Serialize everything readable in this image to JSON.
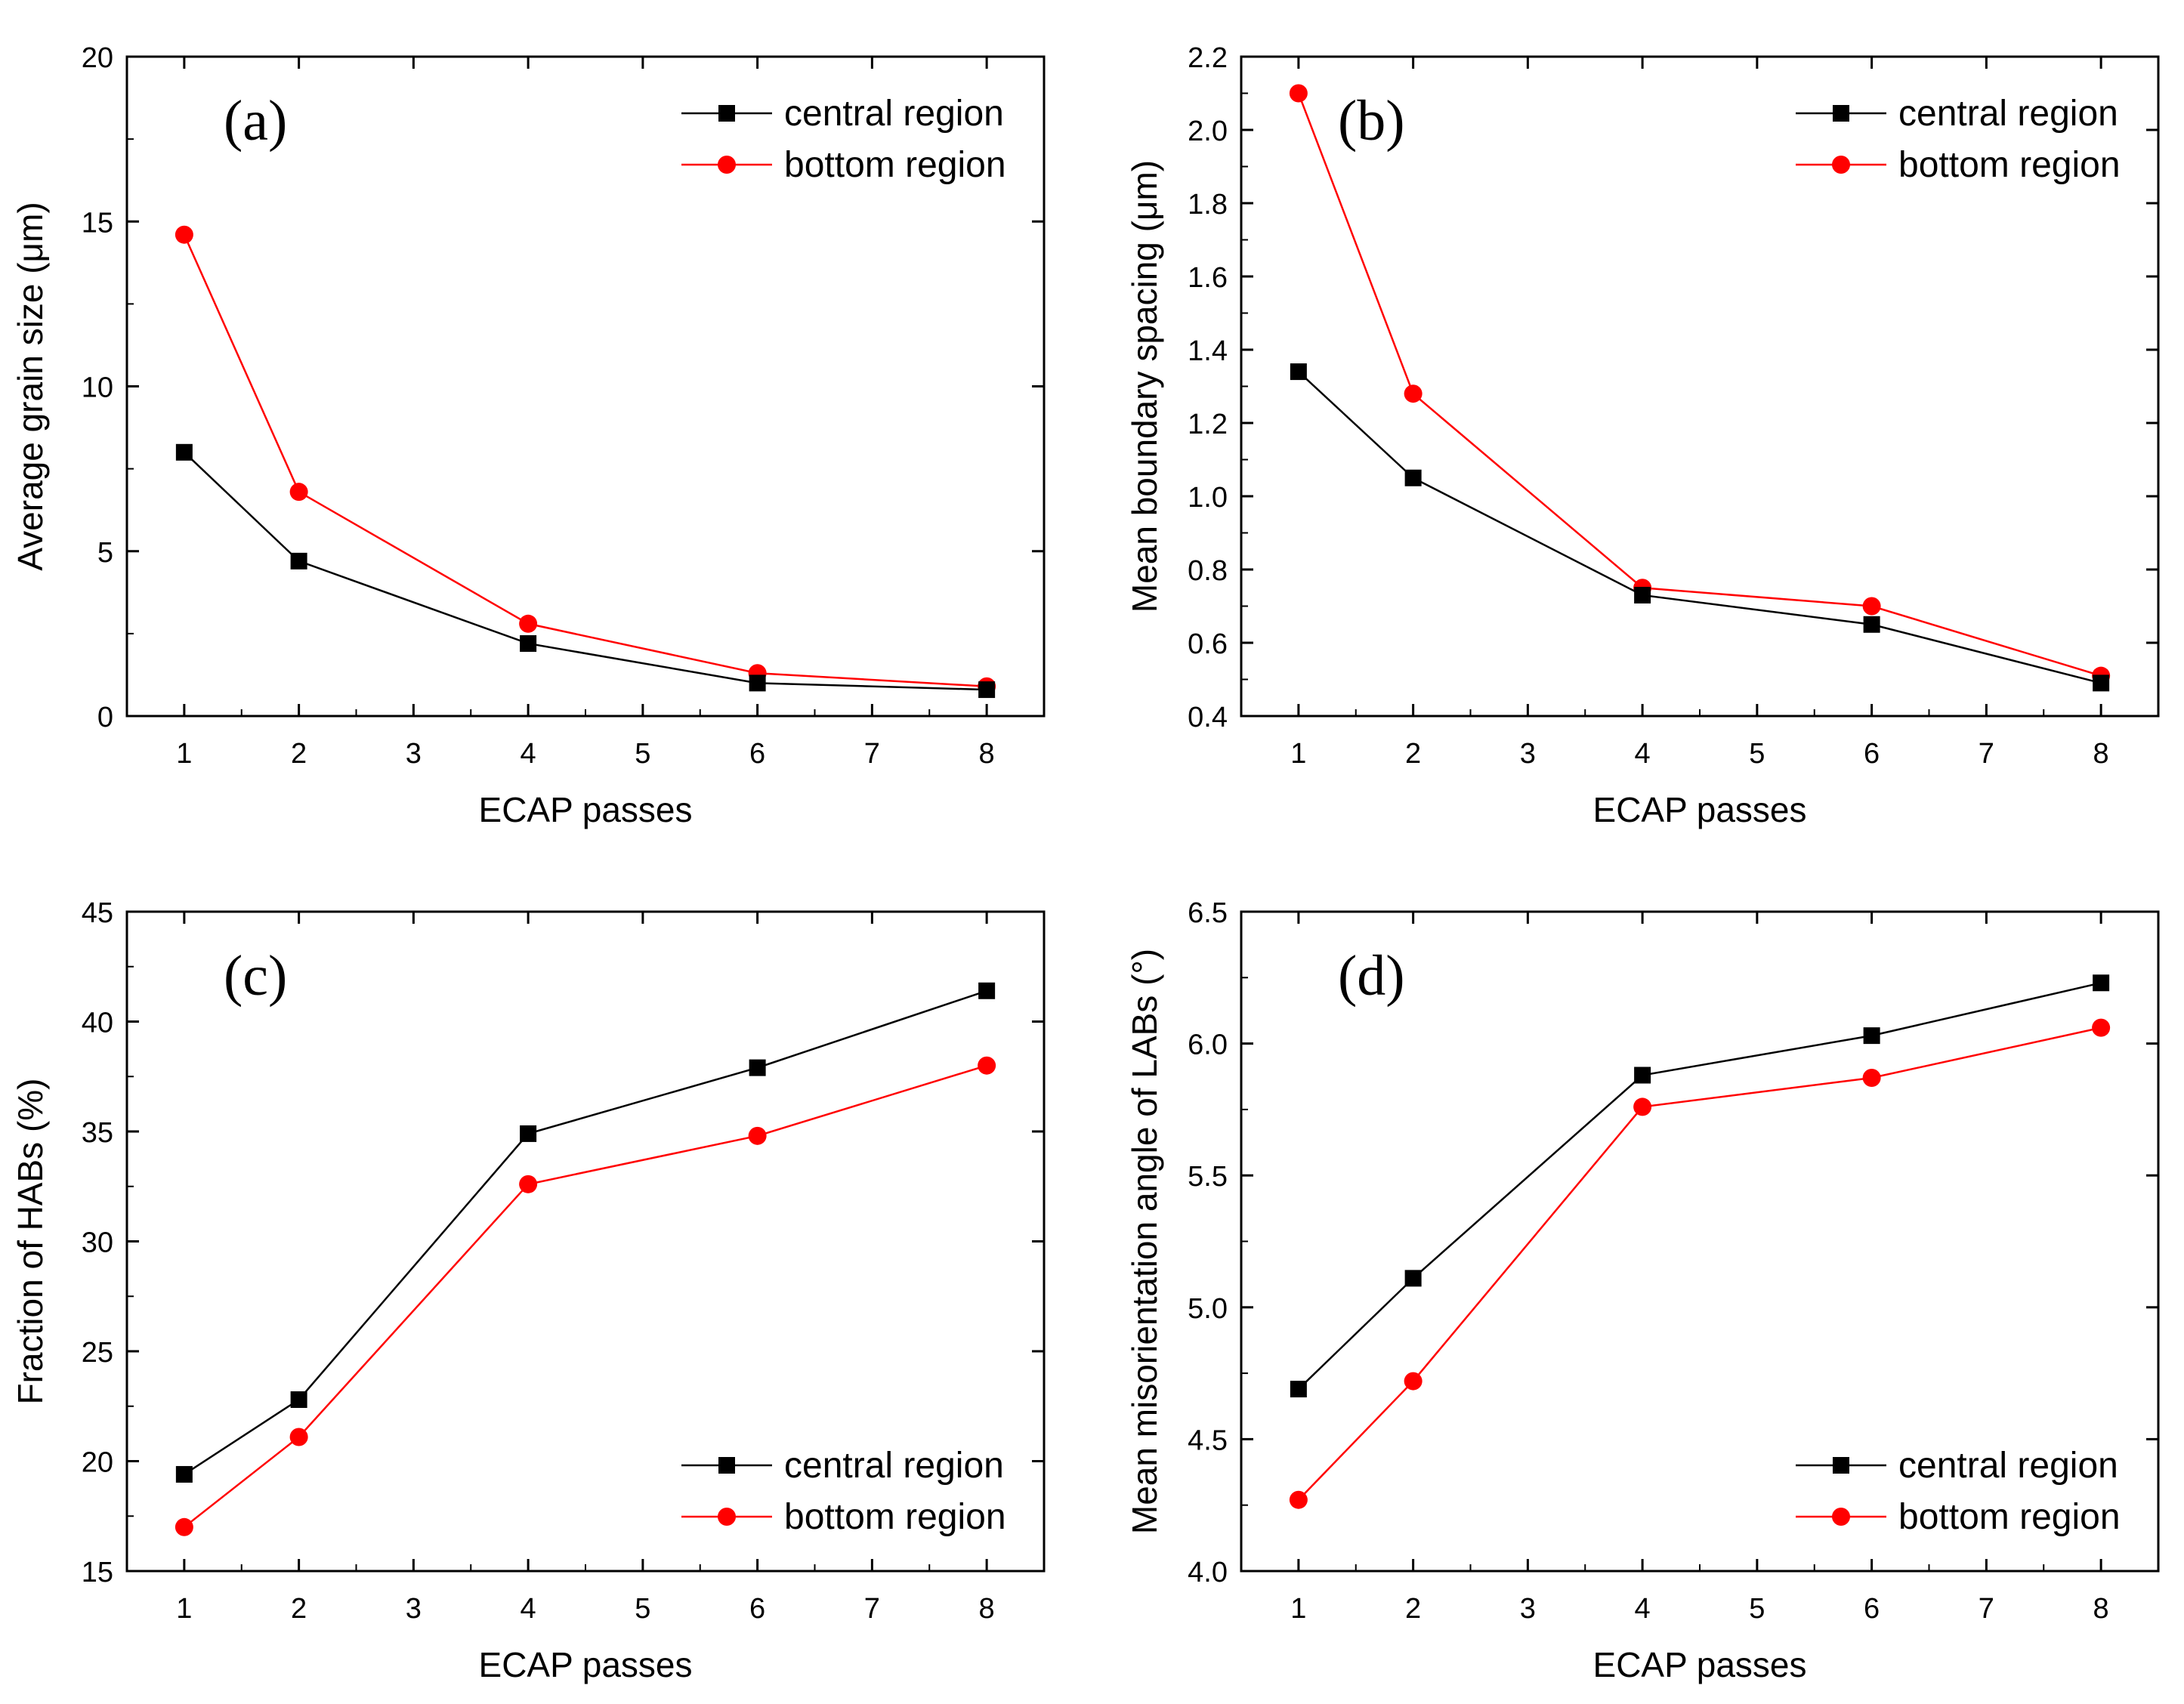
{
  "colors": {
    "central": "#000000",
    "bottom": "#ff0000",
    "axis": "#000000",
    "background": "#ffffff"
  },
  "chart_data": [
    {
      "type": "line",
      "panel": "(a)",
      "xlabel": "ECAP passes",
      "ylabel": "Average grain size (μm)",
      "xlim": [
        0.5,
        8.5
      ],
      "ylim": [
        0,
        20
      ],
      "xticks": [
        1,
        2,
        3,
        4,
        5,
        6,
        7,
        8
      ],
      "yticks": [
        0,
        5,
        10,
        15,
        20
      ],
      "legend_position": "top-right",
      "series": [
        {
          "name": "central region",
          "marker": "square",
          "color": "#000000",
          "x": [
            1,
            2,
            4,
            6,
            8
          ],
          "values": [
            8.0,
            4.7,
            2.2,
            1.0,
            0.8
          ]
        },
        {
          "name": "bottom region",
          "marker": "circle",
          "color": "#ff0000",
          "x": [
            1,
            2,
            4,
            6,
            8
          ],
          "values": [
            14.6,
            6.8,
            2.8,
            1.3,
            0.9
          ]
        }
      ]
    },
    {
      "type": "line",
      "panel": "(b)",
      "xlabel": "ECAP passes",
      "ylabel": "Mean boundary spacing (μm)",
      "xlim": [
        0.5,
        8.5
      ],
      "ylim": [
        0.4,
        2.2
      ],
      "xticks": [
        1,
        2,
        3,
        4,
        5,
        6,
        7,
        8
      ],
      "yticks": [
        0.4,
        0.6,
        0.8,
        1.0,
        1.2,
        1.4,
        1.6,
        1.8,
        2.0,
        2.2
      ],
      "yfixed": 1,
      "legend_position": "top-right",
      "series": [
        {
          "name": "central region",
          "marker": "square",
          "color": "#000000",
          "x": [
            1,
            2,
            4,
            6,
            8
          ],
          "values": [
            1.34,
            1.05,
            0.73,
            0.65,
            0.49
          ]
        },
        {
          "name": "bottom region",
          "marker": "circle",
          "color": "#ff0000",
          "x": [
            1,
            2,
            4,
            6,
            8
          ],
          "values": [
            2.1,
            1.28,
            0.75,
            0.7,
            0.51
          ]
        }
      ]
    },
    {
      "type": "line",
      "panel": "(c)",
      "xlabel": "ECAP passes",
      "ylabel": "Fraction of HABs (%)",
      "xlim": [
        0.5,
        8.5
      ],
      "ylim": [
        15,
        45
      ],
      "xticks": [
        1,
        2,
        3,
        4,
        5,
        6,
        7,
        8
      ],
      "yticks": [
        15,
        20,
        25,
        30,
        35,
        40,
        45
      ],
      "legend_position": "bottom-right",
      "series": [
        {
          "name": "central region",
          "marker": "square",
          "color": "#000000",
          "x": [
            1,
            2,
            4,
            6,
            8
          ],
          "values": [
            19.4,
            22.8,
            34.9,
            37.9,
            41.4
          ]
        },
        {
          "name": "bottom region",
          "marker": "circle",
          "color": "#ff0000",
          "x": [
            1,
            2,
            4,
            6,
            8
          ],
          "values": [
            17.0,
            21.1,
            32.6,
            34.8,
            38.0
          ]
        }
      ]
    },
    {
      "type": "line",
      "panel": "(d)",
      "xlabel": "ECAP passes",
      "ylabel": "Mean misorientation angle of LABs (°)",
      "xlim": [
        0.5,
        8.5
      ],
      "ylim": [
        4.0,
        6.5
      ],
      "xticks": [
        1,
        2,
        3,
        4,
        5,
        6,
        7,
        8
      ],
      "yticks": [
        4.0,
        4.5,
        5.0,
        5.5,
        6.0,
        6.5
      ],
      "yfixed": 1,
      "legend_position": "bottom-right",
      "series": [
        {
          "name": "central region",
          "marker": "square",
          "color": "#000000",
          "x": [
            1,
            2,
            4,
            6,
            8
          ],
          "values": [
            4.69,
            5.11,
            5.88,
            6.03,
            6.23
          ]
        },
        {
          "name": "bottom region",
          "marker": "circle",
          "color": "#ff0000",
          "x": [
            1,
            2,
            4,
            6,
            8
          ],
          "values": [
            4.27,
            4.72,
            5.76,
            5.87,
            6.06
          ]
        }
      ]
    }
  ]
}
